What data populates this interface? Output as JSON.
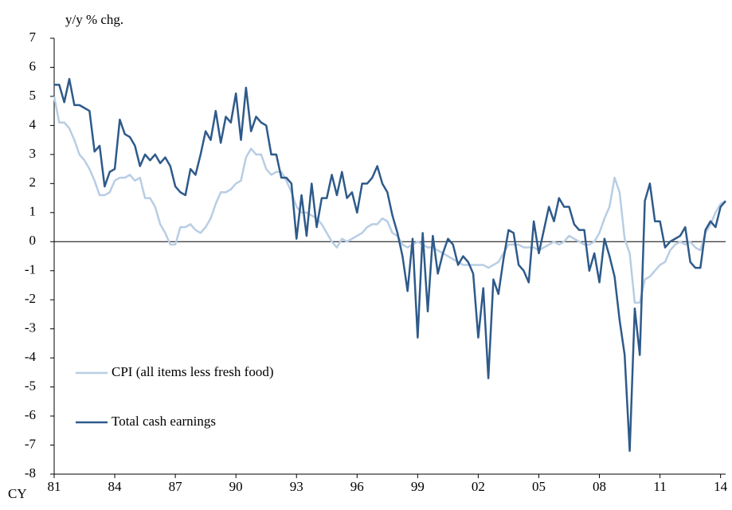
{
  "chart_data": {
    "type": "line",
    "y_label": "y/y % chg.",
    "x_label": "CY",
    "x": [
      1981,
      1981.25,
      1981.5,
      1981.75,
      1982,
      1982.25,
      1982.5,
      1982.75,
      1983,
      1983.25,
      1983.5,
      1983.75,
      1984,
      1984.25,
      1984.5,
      1984.75,
      1985,
      1985.25,
      1985.5,
      1985.75,
      1986,
      1986.25,
      1986.5,
      1986.75,
      1987,
      1987.25,
      1987.5,
      1987.75,
      1988,
      1988.25,
      1988.5,
      1988.75,
      1989,
      1989.25,
      1989.5,
      1989.75,
      1990,
      1990.25,
      1990.5,
      1990.75,
      1991,
      1991.25,
      1991.5,
      1991.75,
      1992,
      1992.25,
      1992.5,
      1992.75,
      1993,
      1993.25,
      1993.5,
      1993.75,
      1994,
      1994.25,
      1994.5,
      1994.75,
      1995,
      1995.25,
      1995.5,
      1995.75,
      1996,
      1996.25,
      1996.5,
      1996.75,
      1997,
      1997.25,
      1997.5,
      1997.75,
      1998,
      1998.25,
      1998.5,
      1998.75,
      1999,
      1999.25,
      1999.5,
      1999.75,
      2000,
      2000.25,
      2000.5,
      2000.75,
      2001,
      2001.25,
      2001.5,
      2001.75,
      2002,
      2002.25,
      2002.5,
      2002.75,
      2003,
      2003.25,
      2003.5,
      2003.75,
      2004,
      2004.25,
      2004.5,
      2004.75,
      2005,
      2005.25,
      2005.5,
      2005.75,
      2006,
      2006.25,
      2006.5,
      2006.75,
      2007,
      2007.25,
      2007.5,
      2007.75,
      2008,
      2008.25,
      2008.5,
      2008.75,
      2009,
      2009.25,
      2009.5,
      2009.75,
      2010,
      2010.25,
      2010.5,
      2010.75,
      2011,
      2011.25,
      2011.5,
      2011.75,
      2012,
      2012.25,
      2012.5,
      2012.75,
      2013,
      2013.25,
      2013.5,
      2013.75,
      2014,
      2014.25
    ],
    "series": [
      {
        "name": "CPI (all items less fresh food)",
        "color": "#b8cde4",
        "values": [
          5.0,
          4.1,
          4.1,
          3.9,
          3.5,
          3.0,
          2.8,
          2.5,
          2.1,
          1.6,
          1.6,
          1.7,
          2.1,
          2.2,
          2.2,
          2.3,
          2.1,
          2.2,
          1.5,
          1.5,
          1.2,
          0.6,
          0.3,
          -0.1,
          -0.1,
          0.5,
          0.5,
          0.6,
          0.4,
          0.3,
          0.5,
          0.8,
          1.3,
          1.7,
          1.7,
          1.8,
          2.0,
          2.1,
          2.9,
          3.2,
          3.0,
          3.0,
          2.5,
          2.3,
          2.4,
          2.4,
          2.1,
          1.7,
          1.2,
          1.0,
          1.0,
          0.9,
          0.8,
          0.6,
          0.3,
          0.0,
          -0.2,
          0.1,
          0.0,
          0.1,
          0.2,
          0.3,
          0.5,
          0.6,
          0.6,
          0.8,
          0.7,
          0.3,
          0.2,
          -0.1,
          -0.2,
          -0.1,
          0.0,
          -0.1,
          -0.2,
          -0.2,
          -0.3,
          -0.4,
          -0.5,
          -0.6,
          -0.7,
          -0.8,
          -0.8,
          -0.8,
          -0.8,
          -0.8,
          -0.9,
          -0.8,
          -0.7,
          -0.4,
          -0.1,
          -0.1,
          -0.1,
          -0.2,
          -0.2,
          -0.2,
          -0.3,
          -0.2,
          -0.1,
          0.0,
          -0.1,
          0.0,
          0.2,
          0.1,
          0.0,
          -0.1,
          -0.1,
          0.0,
          0.3,
          0.8,
          1.2,
          2.2,
          1.7,
          0.1,
          -0.4,
          -2.1,
          -2.1,
          -1.3,
          -1.2,
          -1.0,
          -0.8,
          -0.7,
          -0.3,
          -0.1,
          0.0,
          -0.1,
          0.0,
          -0.2,
          -0.3,
          0.3,
          0.6,
          1.0,
          1.3,
          1.4
        ]
      },
      {
        "name": "Total cash earnings",
        "color": "#2e5a8a",
        "values": [
          5.4,
          5.4,
          4.8,
          5.6,
          4.7,
          4.7,
          4.6,
          4.5,
          3.1,
          3.3,
          1.9,
          2.4,
          2.5,
          4.2,
          3.7,
          3.6,
          3.3,
          2.6,
          3.0,
          2.8,
          3.0,
          2.7,
          2.9,
          2.6,
          1.9,
          1.7,
          1.6,
          2.5,
          2.3,
          3.0,
          3.8,
          3.5,
          4.5,
          3.4,
          4.3,
          4.1,
          5.1,
          3.5,
          5.3,
          3.8,
          4.3,
          4.1,
          4.0,
          3.0,
          3.0,
          2.2,
          2.2,
          2.0,
          0.1,
          1.6,
          0.2,
          2.0,
          0.5,
          1.5,
          1.5,
          2.3,
          1.6,
          2.4,
          1.5,
          1.7,
          1.0,
          2.0,
          2.0,
          2.2,
          2.6,
          2.0,
          1.7,
          0.9,
          0.3,
          -0.5,
          -1.7,
          0.1,
          -3.3,
          0.3,
          -2.4,
          0.2,
          -1.1,
          -0.4,
          0.1,
          -0.1,
          -0.8,
          -0.5,
          -0.7,
          -1.1,
          -3.3,
          -1.6,
          -4.7,
          -1.3,
          -1.8,
          -0.6,
          0.4,
          0.3,
          -0.8,
          -1.0,
          -1.4,
          0.7,
          -0.4,
          0.4,
          1.2,
          0.7,
          1.5,
          1.2,
          1.2,
          0.6,
          0.4,
          0.4,
          -1.0,
          -0.4,
          -1.4,
          0.1,
          -0.5,
          -1.2,
          -2.7,
          -3.9,
          -7.2,
          -2.3,
          -3.9,
          1.4,
          2.0,
          0.7,
          0.7,
          -0.2,
          0.0,
          0.1,
          0.2,
          0.5,
          -0.7,
          -0.9,
          -0.9,
          0.4,
          0.7,
          0.5,
          1.2,
          1.4
        ]
      }
    ],
    "xlim": [
      1981,
      2014.25
    ],
    "xticks": [
      {
        "value": 1981,
        "label": "81"
      },
      {
        "value": 1984,
        "label": "84"
      },
      {
        "value": 1987,
        "label": "87"
      },
      {
        "value": 1990,
        "label": "90"
      },
      {
        "value": 1993,
        "label": "93"
      },
      {
        "value": 1996,
        "label": "96"
      },
      {
        "value": 1999,
        "label": "99"
      },
      {
        "value": 2002,
        "label": "02"
      },
      {
        "value": 2005,
        "label": "05"
      },
      {
        "value": 2008,
        "label": "08"
      },
      {
        "value": 2011,
        "label": "11"
      },
      {
        "value": 2014,
        "label": "14"
      }
    ],
    "ylim": [
      -8,
      7
    ],
    "yticks": [
      -8,
      -7,
      -6,
      -5,
      -4,
      -3,
      -2,
      -1,
      0,
      1,
      2,
      3,
      4,
      5,
      6,
      7
    ],
    "zero_line": true,
    "legend": "lower-left"
  }
}
